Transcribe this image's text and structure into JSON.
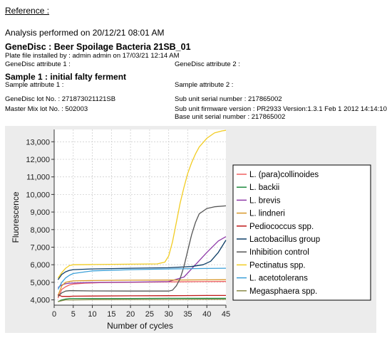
{
  "header": {
    "reference_label": "Reference :",
    "analysis": "Analysis performed on 20/12/21 08:01 AM",
    "genedisc_title": "GeneDisc  : Beer Spoilage Bacteria 21SB_01",
    "plate_installed": "Plate file installed by : admin admin on 17/03/21 12:14 AM",
    "genedisc_attr1": "GeneDisc attribute 1 :",
    "genedisc_attr2": "GeneDisc attribute 2 :",
    "sample_title": "Sample 1 : initial falty ferment",
    "sample_attr1": "Sample attribute 1 :",
    "sample_attr2": "Sample attribute 2 :",
    "genedisc_lot": "GeneDisc lot No. : 271873021121SB",
    "sub_unit_serial": "Sub unit serial number  : 217865002",
    "master_mix_lot": "Master Mix lot No. : 502003",
    "sub_unit_firmware": "Sub unit firmware version : PR2933 Version:1.3.1 Feb  1 2012 14:14:10",
    "base_unit_serial": "Base unit serial number : 217865002"
  },
  "chart_data": {
    "type": "line",
    "xlabel": "Number of cycles",
    "ylabel": "Fluorescence",
    "xlim": [
      0,
      45
    ],
    "ylim": [
      3700,
      13700
    ],
    "xticks": [
      0,
      5,
      10,
      15,
      20,
      25,
      30,
      35,
      40,
      45
    ],
    "xtick_labels": [
      "0",
      "5",
      "10",
      "15",
      "20",
      "25",
      "30",
      "35",
      "40",
      "45"
    ],
    "yticks": [
      4000,
      5000,
      6000,
      7000,
      8000,
      9000,
      10000,
      11000,
      12000,
      13000
    ],
    "ytick_labels": [
      "4,000",
      "5,000",
      "6,000",
      "7,000",
      "8,000",
      "9,000",
      "10,000",
      "11,000",
      "12,000",
      "13,000"
    ],
    "grid": true,
    "legend_position": "right",
    "series": [
      {
        "name": "L. (para)collinoides",
        "color": "#f06060",
        "x": [
          1,
          2,
          3,
          4,
          5,
          8,
          12,
          20,
          30,
          38,
          45
        ],
        "y": [
          4100,
          4600,
          4750,
          4850,
          4900,
          4950,
          4980,
          5000,
          5020,
          5040,
          5050
        ]
      },
      {
        "name": "L. backii",
        "color": "#1e8a3e",
        "x": [
          1,
          2,
          3,
          4,
          5,
          10,
          20,
          30,
          40,
          45
        ],
        "y": [
          3900,
          4000,
          4050,
          4080,
          4080,
          4080,
          4080,
          4090,
          4090,
          4090
        ]
      },
      {
        "name": "L. brevis",
        "color": "#8e3aa8",
        "x": [
          1,
          2,
          3,
          4,
          5,
          10,
          20,
          30,
          34,
          37,
          40,
          43,
          45
        ],
        "y": [
          4700,
          4850,
          4920,
          4950,
          4960,
          4990,
          5010,
          5040,
          5300,
          6000,
          6700,
          7350,
          7600
        ]
      },
      {
        "name": "L. lindneri",
        "color": "#d8972a",
        "x": [
          1,
          2,
          3,
          4,
          5,
          10,
          20,
          30,
          40,
          45
        ],
        "y": [
          4250,
          4800,
          5000,
          5050,
          5080,
          5100,
          5120,
          5130,
          5140,
          5150
        ]
      },
      {
        "name": "Pediococcus spp.",
        "color": "#c01818",
        "x": [
          1,
          2,
          3,
          4,
          5,
          10,
          20,
          30,
          40,
          45
        ],
        "y": [
          4300,
          4200,
          4200,
          4200,
          4210,
          4220,
          4230,
          4240,
          4250,
          4250
        ]
      },
      {
        "name": "Lactobacillus group",
        "color": "#0d3d66",
        "x": [
          1,
          2,
          3,
          4,
          5,
          10,
          20,
          30,
          36,
          39,
          41,
          43,
          45
        ],
        "y": [
          5150,
          5450,
          5600,
          5680,
          5720,
          5760,
          5800,
          5830,
          5900,
          6000,
          6200,
          6700,
          7400
        ]
      },
      {
        "name": "Inhibition control",
        "color": "#555555",
        "x": [
          1,
          2,
          3,
          4,
          5,
          10,
          20,
          30,
          31,
          32,
          33,
          34,
          35,
          36,
          37,
          38,
          40,
          42,
          45
        ],
        "y": [
          4200,
          4400,
          4500,
          4520,
          4520,
          4510,
          4500,
          4500,
          4550,
          4800,
          5200,
          5900,
          6800,
          7700,
          8400,
          8900,
          9200,
          9300,
          9350
        ]
      },
      {
        "name": "Pectinatus spp.",
        "color": "#f2cc22",
        "x": [
          1,
          2,
          3,
          4,
          5,
          10,
          20,
          27,
          29,
          30,
          31,
          32,
          33,
          34,
          35,
          36,
          37,
          38,
          40,
          42,
          44,
          45
        ],
        "y": [
          5250,
          5550,
          5800,
          5950,
          6000,
          6010,
          6030,
          6050,
          6150,
          6500,
          7300,
          8400,
          9500,
          10400,
          11200,
          11800,
          12300,
          12700,
          13200,
          13500,
          13620,
          13650
        ]
      },
      {
        "name": "L. acetotolerans",
        "color": "#3a9fd8",
        "x": [
          1,
          2,
          3,
          4,
          5,
          10,
          20,
          30,
          40,
          45
        ],
        "y": [
          4600,
          5000,
          5250,
          5400,
          5500,
          5650,
          5720,
          5760,
          5790,
          5800
        ]
      },
      {
        "name": "Megasphaera spp.",
        "color": "#8a8a48",
        "x": [
          1,
          2,
          3,
          4,
          5,
          10,
          20,
          30,
          40,
          45
        ],
        "y": [
          3900,
          3950,
          4000,
          4000,
          4000,
          4010,
          4020,
          4020,
          4030,
          4030
        ]
      }
    ]
  }
}
